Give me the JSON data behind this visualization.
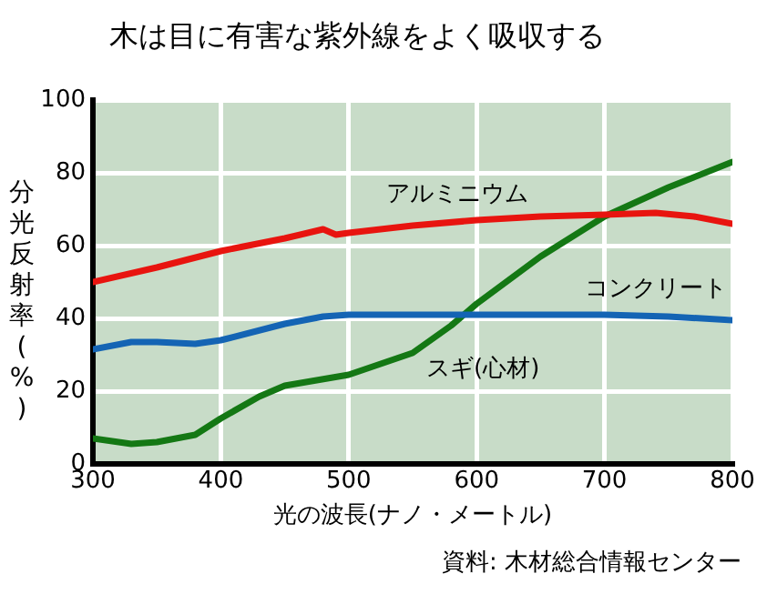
{
  "chart_data": {
    "type": "line",
    "title": "木は目に有害な紫外線をよく吸収する",
    "xlabel": "光の波長(ナノ・メートル)",
    "ylabel": "分光反射率(%)",
    "annotations": [
      "資料: 木材総合情報センター"
    ],
    "xlim": [
      300,
      800
    ],
    "xticks": [
      300,
      400,
      500,
      600,
      700,
      800
    ],
    "ylim": [
      0,
      100
    ],
    "yticks": [
      0,
      20,
      40,
      60,
      80,
      100
    ],
    "grid": true,
    "legend": false,
    "marker": "none",
    "line_style": "solid",
    "series": [
      {
        "name": "アルミニウム",
        "color": "#e8140f",
        "x": [
          300,
          350,
          400,
          450,
          480,
          490,
          500,
          550,
          600,
          650,
          700,
          740,
          770,
          800
        ],
        "values": [
          50,
          54,
          58.5,
          62,
          64.5,
          63,
          63.5,
          65.5,
          67,
          68,
          68.5,
          69,
          68,
          66
        ]
      },
      {
        "name": "コンクリート",
        "color": "#1464b4",
        "x": [
          300,
          330,
          350,
          380,
          400,
          450,
          480,
          500,
          550,
          600,
          700,
          750,
          800
        ],
        "values": [
          31.5,
          33.5,
          33.5,
          33,
          34,
          38.5,
          40.5,
          41,
          41,
          41,
          41,
          40.5,
          39.5
        ]
      },
      {
        "name": "スギ(心材)",
        "color": "#147814",
        "x": [
          300,
          330,
          350,
          380,
          400,
          430,
          450,
          500,
          550,
          580,
          600,
          650,
          700,
          750,
          800
        ],
        "values": [
          7,
          5.5,
          6,
          8,
          12.5,
          18.5,
          21.5,
          24.5,
          30.5,
          38,
          44,
          57,
          68,
          76,
          83
        ]
      }
    ]
  }
}
